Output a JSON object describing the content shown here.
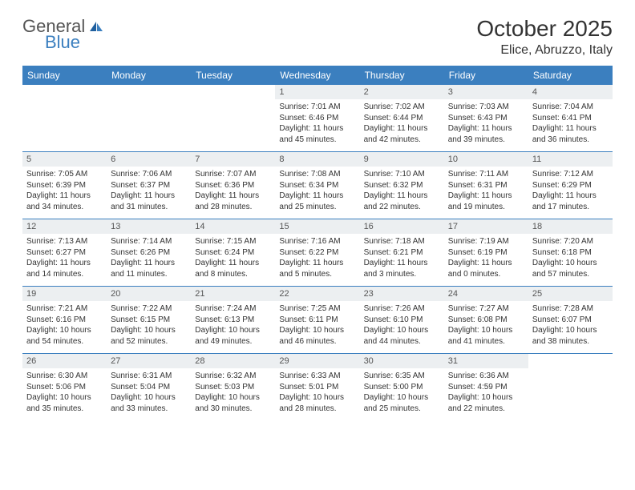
{
  "logo": {
    "general": "General",
    "blue": "Blue"
  },
  "title": "October 2025",
  "location": "Elice, Abruzzo, Italy",
  "colors": {
    "header_bg": "#3b7fbf",
    "header_text": "#ffffff",
    "daynum_bg": "#eceff1",
    "sep": "#3b7fbf",
    "body_text": "#333333"
  },
  "day_headers": [
    "Sunday",
    "Monday",
    "Tuesday",
    "Wednesday",
    "Thursday",
    "Friday",
    "Saturday"
  ],
  "weeks": [
    [
      {
        "blank": true
      },
      {
        "blank": true
      },
      {
        "blank": true
      },
      {
        "n": "1",
        "sr": "7:01 AM",
        "ss": "6:46 PM",
        "dl": "11 hours and 45 minutes."
      },
      {
        "n": "2",
        "sr": "7:02 AM",
        "ss": "6:44 PM",
        "dl": "11 hours and 42 minutes."
      },
      {
        "n": "3",
        "sr": "7:03 AM",
        "ss": "6:43 PM",
        "dl": "11 hours and 39 minutes."
      },
      {
        "n": "4",
        "sr": "7:04 AM",
        "ss": "6:41 PM",
        "dl": "11 hours and 36 minutes."
      }
    ],
    [
      {
        "n": "5",
        "sr": "7:05 AM",
        "ss": "6:39 PM",
        "dl": "11 hours and 34 minutes."
      },
      {
        "n": "6",
        "sr": "7:06 AM",
        "ss": "6:37 PM",
        "dl": "11 hours and 31 minutes."
      },
      {
        "n": "7",
        "sr": "7:07 AM",
        "ss": "6:36 PM",
        "dl": "11 hours and 28 minutes."
      },
      {
        "n": "8",
        "sr": "7:08 AM",
        "ss": "6:34 PM",
        "dl": "11 hours and 25 minutes."
      },
      {
        "n": "9",
        "sr": "7:10 AM",
        "ss": "6:32 PM",
        "dl": "11 hours and 22 minutes."
      },
      {
        "n": "10",
        "sr": "7:11 AM",
        "ss": "6:31 PM",
        "dl": "11 hours and 19 minutes."
      },
      {
        "n": "11",
        "sr": "7:12 AM",
        "ss": "6:29 PM",
        "dl": "11 hours and 17 minutes."
      }
    ],
    [
      {
        "n": "12",
        "sr": "7:13 AM",
        "ss": "6:27 PM",
        "dl": "11 hours and 14 minutes."
      },
      {
        "n": "13",
        "sr": "7:14 AM",
        "ss": "6:26 PM",
        "dl": "11 hours and 11 minutes."
      },
      {
        "n": "14",
        "sr": "7:15 AM",
        "ss": "6:24 PM",
        "dl": "11 hours and 8 minutes."
      },
      {
        "n": "15",
        "sr": "7:16 AM",
        "ss": "6:22 PM",
        "dl": "11 hours and 5 minutes."
      },
      {
        "n": "16",
        "sr": "7:18 AM",
        "ss": "6:21 PM",
        "dl": "11 hours and 3 minutes."
      },
      {
        "n": "17",
        "sr": "7:19 AM",
        "ss": "6:19 PM",
        "dl": "11 hours and 0 minutes."
      },
      {
        "n": "18",
        "sr": "7:20 AM",
        "ss": "6:18 PM",
        "dl": "10 hours and 57 minutes."
      }
    ],
    [
      {
        "n": "19",
        "sr": "7:21 AM",
        "ss": "6:16 PM",
        "dl": "10 hours and 54 minutes."
      },
      {
        "n": "20",
        "sr": "7:22 AM",
        "ss": "6:15 PM",
        "dl": "10 hours and 52 minutes."
      },
      {
        "n": "21",
        "sr": "7:24 AM",
        "ss": "6:13 PM",
        "dl": "10 hours and 49 minutes."
      },
      {
        "n": "22",
        "sr": "7:25 AM",
        "ss": "6:11 PM",
        "dl": "10 hours and 46 minutes."
      },
      {
        "n": "23",
        "sr": "7:26 AM",
        "ss": "6:10 PM",
        "dl": "10 hours and 44 minutes."
      },
      {
        "n": "24",
        "sr": "7:27 AM",
        "ss": "6:08 PM",
        "dl": "10 hours and 41 minutes."
      },
      {
        "n": "25",
        "sr": "7:28 AM",
        "ss": "6:07 PM",
        "dl": "10 hours and 38 minutes."
      }
    ],
    [
      {
        "n": "26",
        "sr": "6:30 AM",
        "ss": "5:06 PM",
        "dl": "10 hours and 35 minutes."
      },
      {
        "n": "27",
        "sr": "6:31 AM",
        "ss": "5:04 PM",
        "dl": "10 hours and 33 minutes."
      },
      {
        "n": "28",
        "sr": "6:32 AM",
        "ss": "5:03 PM",
        "dl": "10 hours and 30 minutes."
      },
      {
        "n": "29",
        "sr": "6:33 AM",
        "ss": "5:01 PM",
        "dl": "10 hours and 28 minutes."
      },
      {
        "n": "30",
        "sr": "6:35 AM",
        "ss": "5:00 PM",
        "dl": "10 hours and 25 minutes."
      },
      {
        "n": "31",
        "sr": "6:36 AM",
        "ss": "4:59 PM",
        "dl": "10 hours and 22 minutes."
      },
      {
        "blank": true
      }
    ]
  ],
  "labels": {
    "sunrise": "Sunrise: ",
    "sunset": "Sunset: ",
    "daylight": "Daylight: "
  }
}
